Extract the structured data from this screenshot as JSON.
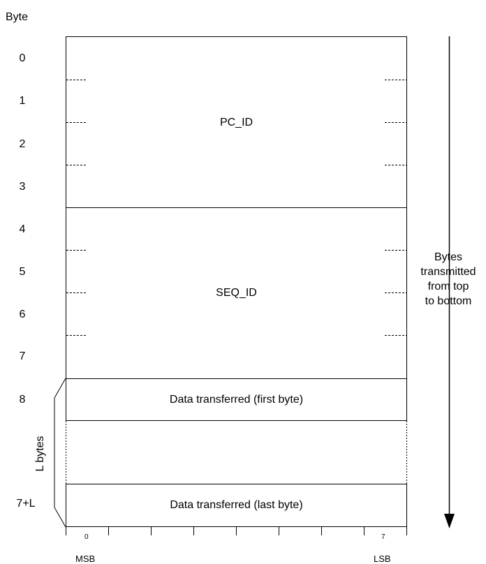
{
  "byte_header": "Byte",
  "byte_labels": {
    "b0": "0",
    "b1": "1",
    "b2": "2",
    "b3": "3",
    "b4": "4",
    "b5": "5",
    "b6": "6",
    "b7": "7",
    "b8": "8",
    "bL": "7+L"
  },
  "fields": {
    "pc_id": "PC_ID",
    "seq_id": "SEQ_ID",
    "data_first": "Data transferred (first byte)",
    "data_last": "Data transferred (last byte)"
  },
  "l_bytes": "L bytes",
  "direction_note": {
    "line1": "Bytes",
    "line2": "transmitted",
    "line3": "from top",
    "line4": "to bottom"
  },
  "bit_axis": {
    "first_bit": "0",
    "last_bit": "7",
    "msb": "MSB",
    "lsb": "LSB"
  }
}
